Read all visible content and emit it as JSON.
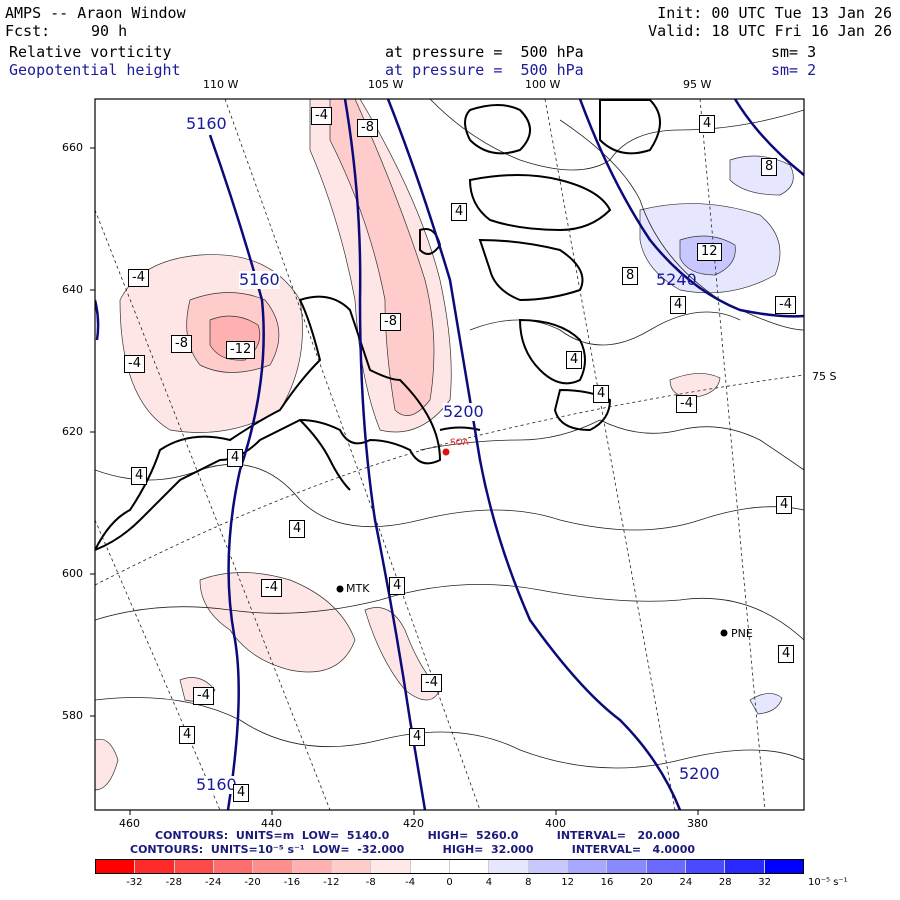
{
  "header": {
    "title": "AMPS -- Araon Window",
    "init": "Init: 00 UTC Tue 13 Jan 26",
    "fcst_label": "Fcst:",
    "fcst_value": "90 h",
    "valid": "Valid: 18 UTC Fri 16 Jan 26",
    "field1": {
      "name": "Relative vorticity",
      "pressure": "at pressure =  500 hPa",
      "sm": "sm= 3"
    },
    "field2": {
      "name": "Geopotential height",
      "pressure": "at pressure =  500 hPa",
      "sm": "sm= 2"
    }
  },
  "axes": {
    "lon_top": [
      "110 W",
      "105 W",
      "100 W",
      "95 W"
    ],
    "lat_right": "75 S",
    "y_ticks": [
      "660",
      "640",
      "620",
      "600",
      "580"
    ],
    "x_ticks": [
      "460",
      "440",
      "420",
      "400",
      "380"
    ]
  },
  "stations": [
    {
      "code": "SOA",
      "color": "#e01010"
    },
    {
      "code": "MTK",
      "color": "#000000"
    },
    {
      "code": "PNE",
      "color": "#000000"
    }
  ],
  "height_labels": [
    "5160",
    "5160",
    "5200",
    "5240",
    "5160",
    "5200"
  ],
  "vort_labels": {
    "neg4": "-4",
    "neg8": "-8",
    "neg12": "-12",
    "pos4": "4",
    "pos8": "8",
    "pos12": "12"
  },
  "contours_info": {
    "line1": "CONTOURS:  UNITS=m  LOW=  5140.0          HIGH=  5260.0          INTERVAL=   20.000",
    "line2": "CONTOURS:  UNITS=10⁻⁵ s⁻¹  LOW=  -32.000          HIGH=  32.000          INTERVAL=   4.0000"
  },
  "colorbar": {
    "ticks": [
      "-32",
      "-28",
      "-24",
      "-20",
      "-16",
      "-12",
      "-8",
      "-4",
      "0",
      "4",
      "8",
      "12",
      "16",
      "20",
      "24",
      "28",
      "32"
    ],
    "unit": "10⁻⁵ s⁻¹",
    "colors": [
      "#ff0000",
      "#ff2a2a",
      "#ff4a4a",
      "#ff6e6e",
      "#ff8e8e",
      "#ffb0b0",
      "#ffcccc",
      "#ffe8e8",
      "#ffffff",
      "#ffffff",
      "#e6e6ff",
      "#c8c8ff",
      "#a8a8ff",
      "#8a8aff",
      "#6a6aff",
      "#4a4aff",
      "#2a2aff",
      "#0000ff"
    ]
  }
}
